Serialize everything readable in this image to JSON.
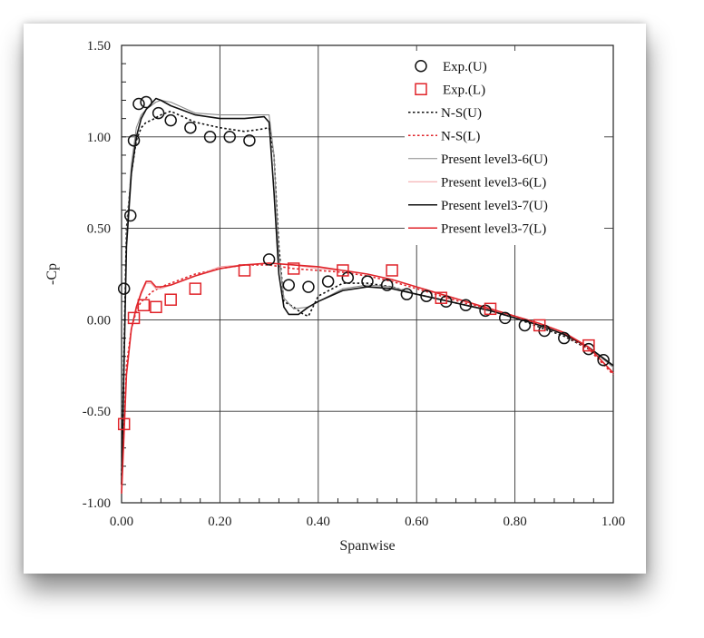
{
  "chart_data": {
    "type": "line",
    "title": "",
    "xlabel": "Spanwise",
    "ylabel": "-Cp",
    "xlim": [
      0,
      1
    ],
    "ylim": [
      -1,
      1.5
    ],
    "x_ticks": [
      "0.00",
      "0.20",
      "0.40",
      "0.60",
      "0.80",
      "1.00"
    ],
    "y_ticks": [
      "1.50",
      "1.00",
      "0.50",
      "0.00",
      "-0.50",
      "-1.00"
    ],
    "grid": true,
    "legend_position": "top-right",
    "series": [
      {
        "name": "Exp.(U)",
        "kind": "marker-circle",
        "color": "#111111",
        "x": [
          0.005,
          0.018,
          0.025,
          0.035,
          0.05,
          0.075,
          0.1,
          0.14,
          0.18,
          0.22,
          0.26,
          0.3,
          0.34,
          0.38,
          0.42,
          0.46,
          0.5,
          0.54,
          0.58,
          0.62,
          0.66,
          0.7,
          0.74,
          0.78,
          0.82,
          0.86,
          0.9,
          0.95,
          0.98
        ],
        "y": [
          0.17,
          0.57,
          0.98,
          1.18,
          1.19,
          1.13,
          1.09,
          1.05,
          1.0,
          1.0,
          0.98,
          0.33,
          0.19,
          0.18,
          0.21,
          0.23,
          0.21,
          0.19,
          0.14,
          0.13,
          0.1,
          0.08,
          0.05,
          0.01,
          -0.03,
          -0.06,
          -0.1,
          -0.16,
          -0.22
        ]
      },
      {
        "name": "Exp.(L)",
        "kind": "marker-square",
        "color": "#e0242a",
        "x": [
          0.005,
          0.025,
          0.045,
          0.07,
          0.1,
          0.15,
          0.25,
          0.35,
          0.45,
          0.55,
          0.65,
          0.75,
          0.85,
          0.95
        ],
        "y": [
          -0.57,
          0.01,
          0.08,
          0.07,
          0.11,
          0.17,
          0.27,
          0.28,
          0.27,
          0.27,
          0.12,
          0.06,
          -0.03,
          -0.14
        ]
      },
      {
        "name": "N-S(U)",
        "kind": "line-dotted",
        "color": "#111111",
        "x": [
          0,
          0.01,
          0.02,
          0.03,
          0.04,
          0.05,
          0.06,
          0.08,
          0.1,
          0.15,
          0.2,
          0.25,
          0.28,
          0.3,
          0.31,
          0.32,
          0.33,
          0.35,
          0.37,
          0.38,
          0.4,
          0.45,
          0.5,
          0.55,
          0.6,
          0.65,
          0.7,
          0.75,
          0.8,
          0.85,
          0.9,
          0.95,
          1.0
        ],
        "y": [
          -0.85,
          0.5,
          0.8,
          0.98,
          1.05,
          1.08,
          1.09,
          1.12,
          1.14,
          1.08,
          1.05,
          1.03,
          1.04,
          1.05,
          0.9,
          0.4,
          0.1,
          0.07,
          0.03,
          0.02,
          0.13,
          0.2,
          0.2,
          0.18,
          0.14,
          0.11,
          0.08,
          0.05,
          0.01,
          -0.04,
          -0.09,
          -0.16,
          -0.25
        ]
      },
      {
        "name": "N-S(L)",
        "kind": "line-dotted",
        "color": "#e0242a",
        "x": [
          0,
          0.01,
          0.02,
          0.03,
          0.04,
          0.05,
          0.06,
          0.08,
          0.1,
          0.15,
          0.2,
          0.25,
          0.3,
          0.35,
          0.4,
          0.45,
          0.5,
          0.55,
          0.6,
          0.65,
          0.7,
          0.75,
          0.8,
          0.85,
          0.9,
          0.95,
          1.0
        ],
        "y": [
          -0.9,
          -0.25,
          -0.05,
          0.05,
          0.1,
          0.12,
          0.15,
          0.18,
          0.2,
          0.25,
          0.28,
          0.3,
          0.3,
          0.28,
          0.27,
          0.26,
          0.24,
          0.21,
          0.17,
          0.13,
          0.09,
          0.06,
          0.02,
          -0.03,
          -0.08,
          -0.16,
          -0.3
        ]
      },
      {
        "name": "Present level3-6(U)",
        "kind": "line-thin",
        "color": "#8a8a8a",
        "x": [
          0,
          0.01,
          0.02,
          0.03,
          0.04,
          0.05,
          0.06,
          0.07,
          0.08,
          0.1,
          0.15,
          0.2,
          0.25,
          0.3,
          0.31,
          0.32,
          0.33,
          0.35,
          0.38,
          0.4,
          0.45,
          0.5,
          0.55,
          0.6,
          0.65,
          0.7,
          0.75,
          0.8,
          0.85,
          0.9,
          0.95,
          1.0
        ],
        "y": [
          -0.9,
          0.45,
          0.85,
          1.05,
          1.12,
          1.15,
          1.17,
          1.19,
          1.2,
          1.19,
          1.13,
          1.12,
          1.12,
          1.12,
          0.9,
          0.35,
          0.12,
          0.06,
          0.07,
          0.1,
          0.17,
          0.19,
          0.18,
          0.14,
          0.11,
          0.08,
          0.05,
          0.01,
          -0.03,
          -0.08,
          -0.15,
          -0.26
        ]
      },
      {
        "name": "Present level3-6(L)",
        "kind": "line-thin",
        "color": "#f2a0a4",
        "x": [
          0,
          0.01,
          0.02,
          0.03,
          0.04,
          0.05,
          0.06,
          0.07,
          0.08,
          0.1,
          0.15,
          0.2,
          0.25,
          0.3,
          0.35,
          0.4,
          0.45,
          0.5,
          0.55,
          0.6,
          0.65,
          0.7,
          0.75,
          0.8,
          0.85,
          0.9,
          0.95,
          1.0
        ],
        "y": [
          -0.95,
          -0.3,
          -0.05,
          0.06,
          0.14,
          0.2,
          0.2,
          0.17,
          0.17,
          0.19,
          0.24,
          0.29,
          0.3,
          0.31,
          0.3,
          0.28,
          0.27,
          0.25,
          0.22,
          0.18,
          0.14,
          0.1,
          0.06,
          0.02,
          -0.02,
          -0.07,
          -0.15,
          -0.29
        ]
      },
      {
        "name": "Present level3-7(U)",
        "kind": "line",
        "color": "#111111",
        "x": [
          0,
          0.01,
          0.02,
          0.03,
          0.04,
          0.05,
          0.06,
          0.07,
          0.08,
          0.1,
          0.15,
          0.2,
          0.25,
          0.29,
          0.3,
          0.31,
          0.32,
          0.33,
          0.34,
          0.36,
          0.38,
          0.4,
          0.45,
          0.5,
          0.55,
          0.6,
          0.65,
          0.7,
          0.75,
          0.8,
          0.85,
          0.9,
          0.95,
          1.0
        ],
        "y": [
          -0.9,
          0.4,
          0.8,
          1.0,
          1.1,
          1.15,
          1.18,
          1.21,
          1.2,
          1.17,
          1.12,
          1.1,
          1.1,
          1.11,
          1.08,
          0.7,
          0.25,
          0.07,
          0.03,
          0.03,
          0.07,
          0.1,
          0.16,
          0.18,
          0.17,
          0.14,
          0.11,
          0.08,
          0.05,
          0.01,
          -0.03,
          -0.08,
          -0.15,
          -0.25
        ]
      },
      {
        "name": "Present level3-7(L)",
        "kind": "line",
        "color": "#e0242a",
        "x": [
          0,
          0.01,
          0.02,
          0.03,
          0.04,
          0.05,
          0.06,
          0.07,
          0.08,
          0.1,
          0.15,
          0.2,
          0.25,
          0.3,
          0.35,
          0.4,
          0.45,
          0.5,
          0.55,
          0.6,
          0.65,
          0.7,
          0.75,
          0.8,
          0.85,
          0.9,
          0.95,
          1.0
        ],
        "y": [
          -0.95,
          -0.3,
          -0.05,
          0.07,
          0.15,
          0.21,
          0.21,
          0.18,
          0.18,
          0.19,
          0.24,
          0.28,
          0.3,
          0.31,
          0.3,
          0.29,
          0.27,
          0.25,
          0.22,
          0.18,
          0.14,
          0.1,
          0.06,
          0.02,
          -0.02,
          -0.07,
          -0.15,
          -0.29
        ]
      }
    ]
  }
}
